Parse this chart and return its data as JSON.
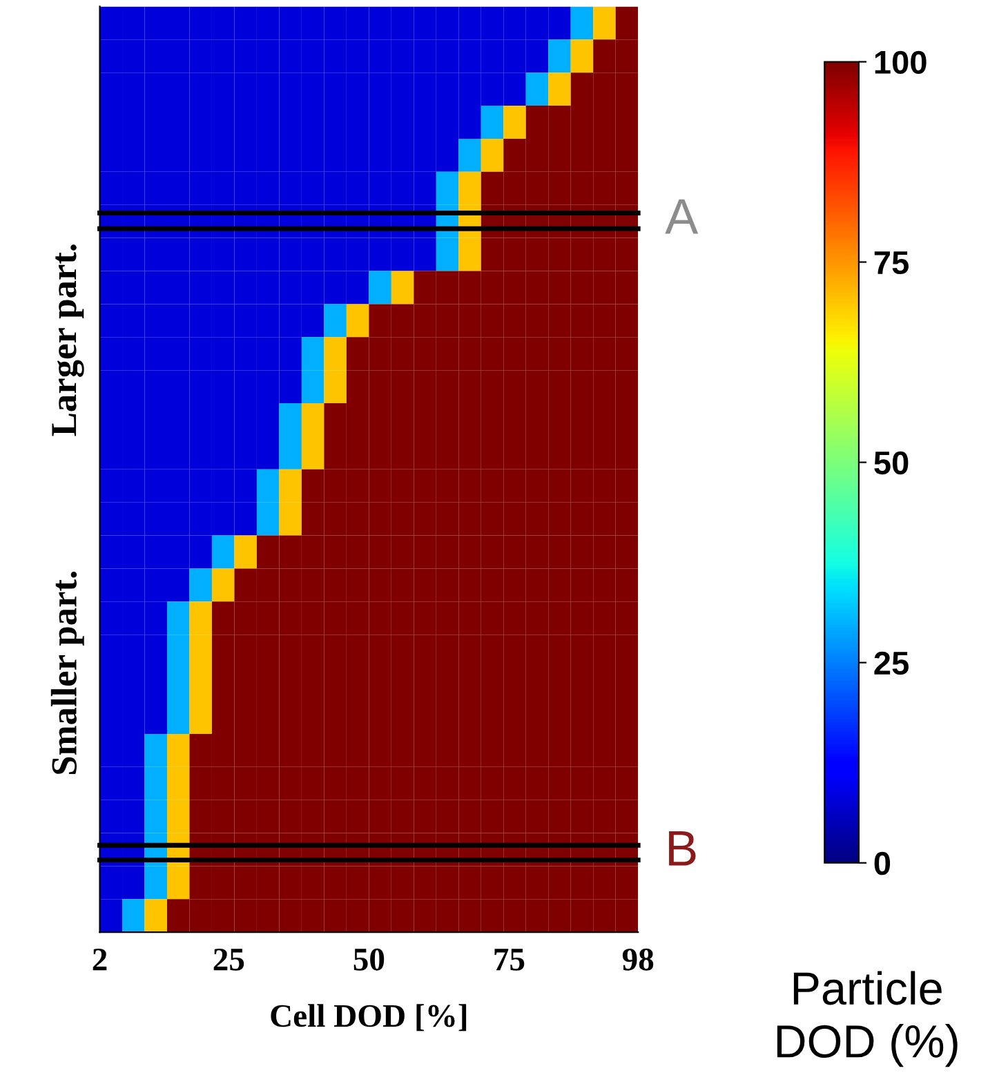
{
  "chart_data": {
    "type": "heatmap",
    "x": [
      4,
      8,
      12,
      16,
      20,
      24,
      28,
      32,
      36,
      40,
      44,
      48,
      52,
      56,
      60,
      64,
      68,
      72,
      76,
      80,
      84,
      88,
      92,
      96
    ],
    "xlim": [
      2,
      98
    ],
    "xticks": [
      2,
      25,
      50,
      75,
      98
    ],
    "xlabel": "Cell DOD [%]",
    "y_categories": [
      null,
      null,
      null,
      null,
      null,
      null,
      null,
      null,
      null,
      null,
      null,
      null,
      null,
      null,
      null,
      null,
      null,
      null,
      null,
      null,
      null,
      null,
      null,
      null,
      null,
      null,
      null,
      null
    ],
    "cells": [
      [
        8,
        8,
        8,
        8,
        8,
        8,
        8,
        8,
        8,
        8,
        8,
        8,
        8,
        8,
        8,
        8,
        8,
        8,
        8,
        8,
        8,
        30,
        70,
        100
      ],
      [
        8,
        8,
        8,
        8,
        8,
        8,
        8,
        8,
        8,
        8,
        8,
        8,
        8,
        8,
        8,
        8,
        8,
        8,
        8,
        8,
        30,
        70,
        100,
        100
      ],
      [
        8,
        8,
        8,
        8,
        8,
        8,
        8,
        8,
        8,
        8,
        8,
        8,
        8,
        8,
        8,
        8,
        8,
        8,
        8,
        30,
        70,
        100,
        100,
        100
      ],
      [
        8,
        8,
        8,
        8,
        8,
        8,
        8,
        8,
        8,
        8,
        8,
        8,
        8,
        8,
        8,
        8,
        8,
        30,
        70,
        100,
        100,
        100,
        100,
        100
      ],
      [
        8,
        8,
        8,
        8,
        8,
        8,
        8,
        8,
        8,
        8,
        8,
        8,
        8,
        8,
        8,
        8,
        30,
        70,
        100,
        100,
        100,
        100,
        100,
        100
      ],
      [
        8,
        8,
        8,
        8,
        8,
        8,
        8,
        8,
        8,
        8,
        8,
        8,
        8,
        8,
        8,
        30,
        70,
        100,
        100,
        100,
        100,
        100,
        100,
        100
      ],
      [
        8,
        8,
        8,
        8,
        8,
        8,
        8,
        8,
        8,
        8,
        8,
        8,
        8,
        8,
        8,
        30,
        70,
        100,
        100,
        100,
        100,
        100,
        100,
        100
      ],
      [
        8,
        8,
        8,
        8,
        8,
        8,
        8,
        8,
        8,
        8,
        8,
        8,
        8,
        8,
        8,
        30,
        70,
        100,
        100,
        100,
        100,
        100,
        100,
        100
      ],
      [
        8,
        8,
        8,
        8,
        8,
        8,
        8,
        8,
        8,
        8,
        8,
        8,
        30,
        70,
        100,
        100,
        100,
        100,
        100,
        100,
        100,
        100,
        100,
        100
      ],
      [
        8,
        8,
        8,
        8,
        8,
        8,
        8,
        8,
        8,
        8,
        30,
        70,
        100,
        100,
        100,
        100,
        100,
        100,
        100,
        100,
        100,
        100,
        100,
        100
      ],
      [
        8,
        8,
        8,
        8,
        8,
        8,
        8,
        8,
        8,
        30,
        70,
        100,
        100,
        100,
        100,
        100,
        100,
        100,
        100,
        100,
        100,
        100,
        100,
        100
      ],
      [
        8,
        8,
        8,
        8,
        8,
        8,
        8,
        8,
        8,
        30,
        70,
        100,
        100,
        100,
        100,
        100,
        100,
        100,
        100,
        100,
        100,
        100,
        100,
        100
      ],
      [
        8,
        8,
        8,
        8,
        8,
        8,
        8,
        8,
        30,
        70,
        100,
        100,
        100,
        100,
        100,
        100,
        100,
        100,
        100,
        100,
        100,
        100,
        100,
        100
      ],
      [
        8,
        8,
        8,
        8,
        8,
        8,
        8,
        8,
        30,
        70,
        100,
        100,
        100,
        100,
        100,
        100,
        100,
        100,
        100,
        100,
        100,
        100,
        100,
        100
      ],
      [
        8,
        8,
        8,
        8,
        8,
        8,
        8,
        30,
        70,
        100,
        100,
        100,
        100,
        100,
        100,
        100,
        100,
        100,
        100,
        100,
        100,
        100,
        100,
        100
      ],
      [
        8,
        8,
        8,
        8,
        8,
        8,
        8,
        30,
        70,
        100,
        100,
        100,
        100,
        100,
        100,
        100,
        100,
        100,
        100,
        100,
        100,
        100,
        100,
        100
      ],
      [
        8,
        8,
        8,
        8,
        8,
        30,
        70,
        100,
        100,
        100,
        100,
        100,
        100,
        100,
        100,
        100,
        100,
        100,
        100,
        100,
        100,
        100,
        100,
        100
      ],
      [
        8,
        8,
        8,
        8,
        30,
        70,
        100,
        100,
        100,
        100,
        100,
        100,
        100,
        100,
        100,
        100,
        100,
        100,
        100,
        100,
        100,
        100,
        100,
        100
      ],
      [
        8,
        8,
        8,
        30,
        70,
        100,
        100,
        100,
        100,
        100,
        100,
        100,
        100,
        100,
        100,
        100,
        100,
        100,
        100,
        100,
        100,
        100,
        100,
        100
      ],
      [
        8,
        8,
        8,
        30,
        70,
        100,
        100,
        100,
        100,
        100,
        100,
        100,
        100,
        100,
        100,
        100,
        100,
        100,
        100,
        100,
        100,
        100,
        100,
        100
      ],
      [
        8,
        8,
        8,
        30,
        70,
        100,
        100,
        100,
        100,
        100,
        100,
        100,
        100,
        100,
        100,
        100,
        100,
        100,
        100,
        100,
        100,
        100,
        100,
        100
      ],
      [
        8,
        8,
        8,
        30,
        70,
        100,
        100,
        100,
        100,
        100,
        100,
        100,
        100,
        100,
        100,
        100,
        100,
        100,
        100,
        100,
        100,
        100,
        100,
        100
      ],
      [
        8,
        8,
        30,
        70,
        100,
        100,
        100,
        100,
        100,
        100,
        100,
        100,
        100,
        100,
        100,
        100,
        100,
        100,
        100,
        100,
        100,
        100,
        100,
        100
      ],
      [
        8,
        8,
        30,
        70,
        100,
        100,
        100,
        100,
        100,
        100,
        100,
        100,
        100,
        100,
        100,
        100,
        100,
        100,
        100,
        100,
        100,
        100,
        100,
        100
      ],
      [
        8,
        8,
        30,
        70,
        100,
        100,
        100,
        100,
        100,
        100,
        100,
        100,
        100,
        100,
        100,
        100,
        100,
        100,
        100,
        100,
        100,
        100,
        100,
        100
      ],
      [
        8,
        8,
        30,
        70,
        100,
        100,
        100,
        100,
        100,
        100,
        100,
        100,
        100,
        100,
        100,
        100,
        100,
        100,
        100,
        100,
        100,
        100,
        100,
        100
      ],
      [
        8,
        8,
        30,
        70,
        100,
        100,
        100,
        100,
        100,
        100,
        100,
        100,
        100,
        100,
        100,
        100,
        100,
        100,
        100,
        100,
        100,
        100,
        100,
        100
      ],
      [
        8,
        30,
        70,
        100,
        100,
        100,
        100,
        100,
        100,
        100,
        100,
        100,
        100,
        100,
        100,
        100,
        100,
        100,
        100,
        100,
        100,
        100,
        100,
        100
      ]
    ],
    "clim": [
      0,
      100
    ],
    "cticks": [
      0,
      25,
      50,
      75,
      100
    ],
    "clabel": "Particle\nDOD (%)",
    "annotations": [
      "Larger part.",
      "Smaller part.",
      "A",
      "B"
    ]
  }
}
